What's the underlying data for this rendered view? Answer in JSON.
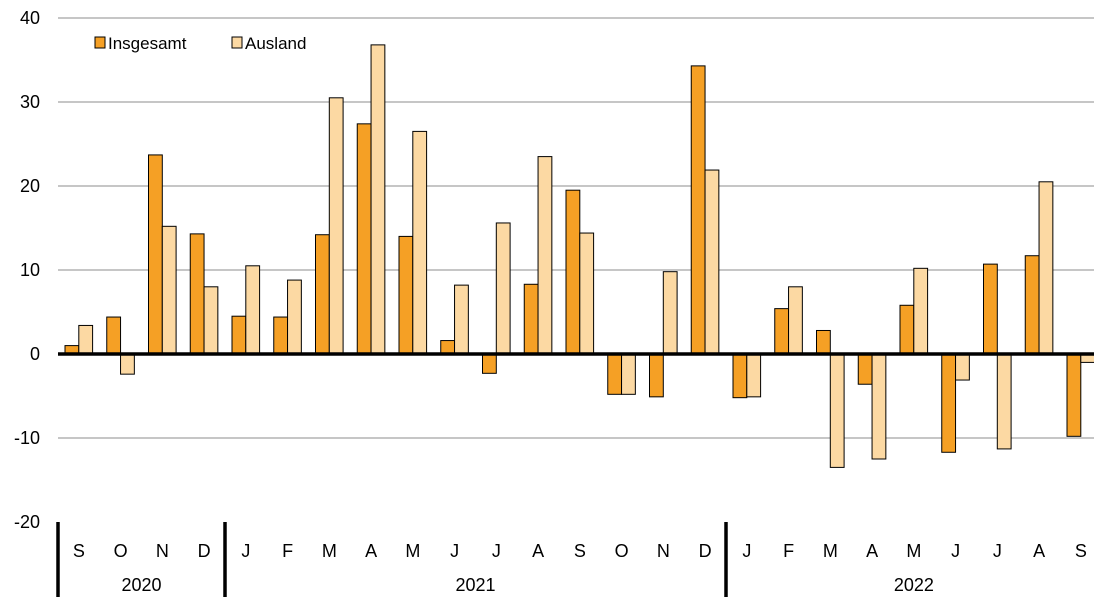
{
  "chart_data": {
    "type": "bar",
    "title": "",
    "xlabel": "",
    "ylabel": "",
    "ylim": [
      -20,
      40
    ],
    "yticks": [
      40,
      30,
      20,
      10,
      0,
      -10,
      -20
    ],
    "grid": true,
    "legend_position": "top-left",
    "categories": [
      "S",
      "O",
      "N",
      "D",
      "J",
      "F",
      "M",
      "A",
      "M",
      "J",
      "J",
      "A",
      "S",
      "O",
      "N",
      "D",
      "J",
      "F",
      "M",
      "A",
      "M",
      "J",
      "J",
      "A",
      "S"
    ],
    "years": [
      {
        "label": "2020",
        "start": 0,
        "end": 3
      },
      {
        "label": "2021",
        "start": 4,
        "end": 15
      },
      {
        "label": "2022",
        "start": 16,
        "end": 24
      }
    ],
    "series": [
      {
        "name": "Insgesamt",
        "color": "#f5a025",
        "values": [
          1.0,
          4.4,
          23.7,
          14.3,
          4.5,
          4.4,
          14.2,
          27.4,
          14.0,
          1.6,
          -2.3,
          8.3,
          19.5,
          -4.8,
          -5.1,
          34.3,
          -5.2,
          5.4,
          2.8,
          -3.6,
          5.8,
          -11.7,
          10.7,
          11.7,
          -9.8
        ]
      },
      {
        "name": "Ausland",
        "color": "#fcd9a3",
        "values": [
          3.4,
          -2.4,
          15.2,
          8.0,
          10.5,
          8.8,
          30.5,
          36.8,
          26.5,
          8.2,
          15.6,
          23.5,
          14.4,
          -4.8,
          9.8,
          21.9,
          -5.1,
          8.0,
          -13.5,
          -12.5,
          10.2,
          -3.1,
          -11.3,
          20.5,
          -1.0
        ]
      }
    ]
  }
}
